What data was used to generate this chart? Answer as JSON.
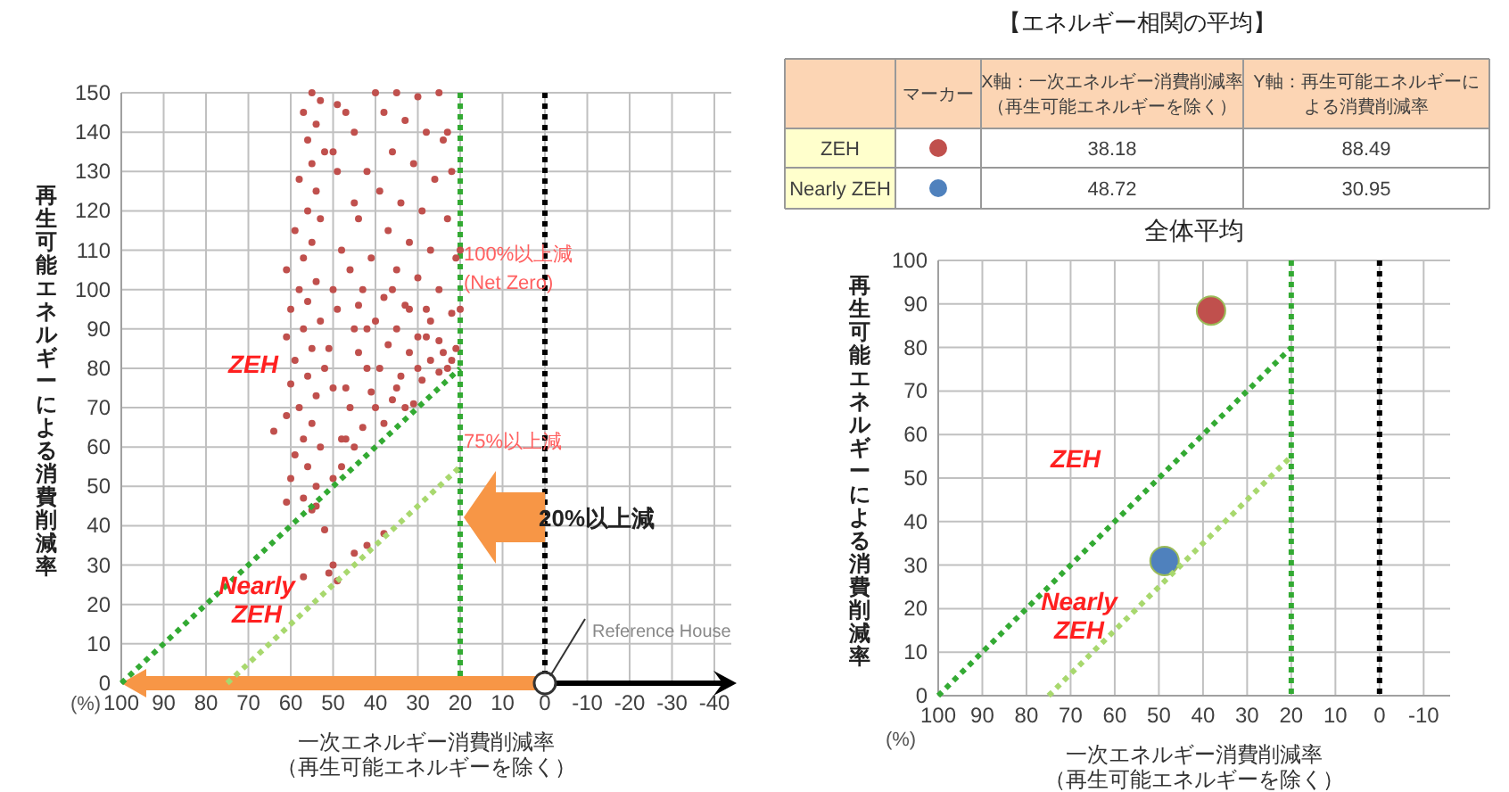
{
  "chart_data": [
    {
      "type": "scatter",
      "xlabel": "一次エネルギー消費削減率（再生可能エネルギーを除く）",
      "ylabel": "再生可能エネルギーによる消費削減率",
      "xlim": [
        100,
        -44
      ],
      "xticks": [
        100,
        90,
        80,
        70,
        60,
        50,
        40,
        30,
        20,
        10,
        0,
        -10,
        -20,
        -30,
        -40
      ],
      "ylim": [
        0,
        150
      ],
      "yticks": [
        0,
        10,
        20,
        30,
        40,
        50,
        60,
        70,
        80,
        90,
        100,
        110,
        120,
        130,
        140,
        150
      ],
      "grid": true,
      "series": [
        {
          "color": "#c0504d",
          "marker": "circle",
          "x": [
            55,
            53,
            57,
            54,
            56,
            52,
            55,
            58,
            54,
            56,
            53,
            59,
            55,
            57,
            61,
            54,
            58,
            56,
            60,
            53,
            57,
            61,
            55,
            59,
            52,
            56,
            60,
            54,
            58,
            61,
            55,
            57,
            53,
            59,
            56,
            60,
            54,
            57,
            61,
            64,
            50,
            48,
            49,
            51,
            50,
            48,
            47,
            45,
            49,
            45,
            44,
            46,
            49,
            40,
            35,
            30,
            25,
            38,
            33,
            28,
            24,
            36,
            31,
            26,
            22,
            39,
            34,
            29,
            23,
            37,
            32,
            27,
            21,
            41,
            35,
            30,
            25,
            43,
            38,
            33,
            28,
            22,
            40,
            35,
            30,
            25,
            21,
            42,
            37,
            32,
            27,
            23,
            44,
            39,
            34,
            29,
            25,
            41,
            36,
            31,
            46,
            43,
            38,
            33,
            45,
            48,
            50,
            47,
            40,
            35,
            30,
            28,
            24,
            22,
            36,
            32,
            27,
            42,
            47,
            45,
            44,
            20,
            20,
            23,
            50,
            42,
            57,
            52,
            50,
            49,
            51,
            45,
            42,
            38,
            55,
            54
          ],
          "values": [
            150,
            148,
            145,
            142,
            138,
            135,
            132,
            128,
            125,
            120,
            118,
            115,
            112,
            108,
            105,
            102,
            100,
            97,
            95,
            92,
            90,
            88,
            85,
            82,
            80,
            78,
            76,
            73,
            70,
            68,
            66,
            62,
            60,
            58,
            55,
            52,
            50,
            47,
            46,
            64,
            100,
            110,
            95,
            85,
            75,
            62,
            145,
            140,
            130,
            122,
            118,
            105,
            147,
            150,
            150,
            149,
            150,
            145,
            143,
            140,
            138,
            135,
            132,
            128,
            130,
            125,
            122,
            120,
            118,
            115,
            112,
            110,
            108,
            108,
            105,
            103,
            100,
            100,
            98,
            96,
            95,
            94,
            92,
            90,
            88,
            87,
            85,
            90,
            86,
            84,
            82,
            80,
            84,
            80,
            78,
            77,
            79,
            74,
            72,
            71,
            70,
            65,
            66,
            70,
            60,
            55,
            52,
            62,
            70,
            75,
            80,
            88,
            84,
            82,
            100,
            95,
            92,
            80,
            75,
            90,
            96,
            95,
            110,
            140,
            135,
            130,
            27,
            39,
            30,
            26,
            28,
            33,
            35,
            38,
            44,
            45
          ]
        },
        {
          "type": "line",
          "color": "#33aa33",
          "line_style": "dotted",
          "x": [
            100,
            20
          ],
          "values": [
            0,
            80
          ]
        },
        {
          "type": "line",
          "color": "#a8d86e",
          "line_style": "dotted",
          "x": [
            75,
            20
          ],
          "values": [
            0,
            55
          ]
        }
      ],
      "ref_lines": [
        {
          "axis": "x",
          "value": 20,
          "color": "#33aa33",
          "line_style": "dotted"
        },
        {
          "axis": "x",
          "value": 0,
          "color": "#000000",
          "line_style": "dotted"
        }
      ],
      "annotations": [
        "ZEH",
        "Nearly\nZEH",
        {
          "text": "100%以上減\n(Net Zero)",
          "x": 20,
          "y": 106
        },
        {
          "text": "75%以上減",
          "x": 20,
          "y": 62
        },
        "20%以上減",
        "Reference House",
        "(%)"
      ]
    },
    {
      "type": "other",
      "title": "【エネルギー相関の平均】",
      "annotations": [
        "マーカー",
        "X軸：一次エネルギー消費削減率（再生可能エネルギーを除く）",
        "Y軸：再生可能エネルギーによる消費削減率",
        "ZEH",
        "38.18",
        "88.49",
        "Nearly ZEH",
        "48.72",
        "30.95"
      ],
      "colors": [
        "#c0504d",
        "#4f81bd"
      ]
    },
    {
      "type": "scatter",
      "title": "全体平均",
      "xlabel": "一次エネルギー消費削減率（再生可能エネルギーを除く）",
      "ylabel": "再生可能エネルギーによる消費削減率",
      "xlim": [
        100,
        -16
      ],
      "xticks": [
        100,
        90,
        80,
        70,
        60,
        50,
        40,
        30,
        20,
        10,
        0,
        -10
      ],
      "ylim": [
        0,
        100
      ],
      "yticks": [
        0,
        10,
        20,
        30,
        40,
        50,
        60,
        70,
        80,
        90,
        100
      ],
      "grid": true,
      "series": [
        {
          "color": "#c0504d",
          "marker": "circle",
          "x": [
            38.18
          ],
          "values": [
            88.49
          ]
        },
        {
          "color": "#4f81bd",
          "marker": "circle",
          "x": [
            48.72
          ],
          "values": [
            30.95
          ]
        },
        {
          "type": "line",
          "color": "#33aa33",
          "line_style": "dotted",
          "x": [
            100,
            20
          ],
          "values": [
            0,
            80
          ]
        },
        {
          "type": "line",
          "color": "#a8d86e",
          "line_style": "dotted",
          "x": [
            75,
            20
          ],
          "values": [
            0,
            55
          ]
        }
      ],
      "ref_lines": [
        {
          "axis": "x",
          "value": 20,
          "color": "#33aa33",
          "line_style": "dotted"
        },
        {
          "axis": "x",
          "value": 0,
          "color": "#000000",
          "line_style": "dotted"
        }
      ],
      "annotations": [
        "ZEH",
        "Nearly\nZEH",
        "(%)"
      ]
    }
  ]
}
